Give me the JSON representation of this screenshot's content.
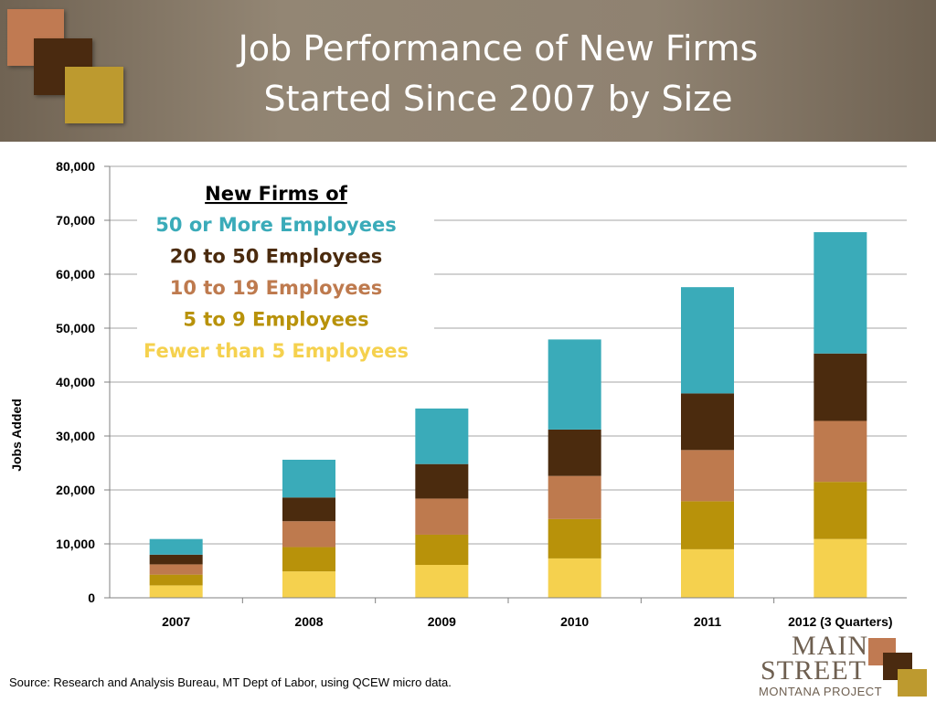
{
  "header": {
    "title_line1": "Job Performance of New Firms",
    "title_line2": "Started Since 2007 by Size"
  },
  "chart_data": {
    "type": "bar",
    "stacked": true,
    "categories": [
      "2007",
      "2008",
      "2009",
      "2010",
      "2011",
      "2012 (3 Quarters)"
    ],
    "ylabel": "Jobs Added",
    "xlabel": "",
    "ylim": [
      0,
      80000
    ],
    "yticks": [
      0,
      10000,
      20000,
      30000,
      40000,
      50000,
      60000,
      70000,
      80000
    ],
    "ytick_labels": [
      "0",
      "10,000",
      "20,000",
      "30,000",
      "40,000",
      "50,000",
      "60,000",
      "70,000",
      "80,000"
    ],
    "grid": true,
    "legend": {
      "title": "New Firms of",
      "placement": "top-left"
    },
    "series": [
      {
        "name": "Fewer than 5 Employees",
        "color": "#f5d14e",
        "values": [
          2300,
          4900,
          6100,
          7300,
          9000,
          10900
        ]
      },
      {
        "name": "5 to 9 Employees",
        "color": "#b8920a",
        "values": [
          2000,
          4500,
          5600,
          7300,
          8900,
          10600
        ]
      },
      {
        "name": "10 to 19 Employees",
        "color": "#be7a4e",
        "values": [
          1900,
          4800,
          6700,
          8000,
          9500,
          11300
        ]
      },
      {
        "name": "20 to 50 Employees",
        "color": "#4b2b0e",
        "values": [
          1800,
          4400,
          6400,
          8600,
          10500,
          12500
        ]
      },
      {
        "name": "50 or More Employees",
        "color": "#3aabb9",
        "values": [
          2900,
          7000,
          10300,
          16700,
          19700,
          22500
        ]
      }
    ]
  },
  "footer": {
    "source": "Source:  Research and Analysis Bureau, MT Dept of Labor, using QCEW micro data."
  },
  "logo": {
    "line1": "MAIN",
    "line2": "STREET",
    "line3": "MONTANA PROJECT"
  }
}
